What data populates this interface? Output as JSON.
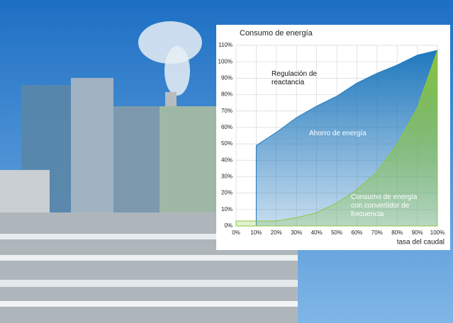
{
  "chart_data": {
    "type": "area",
    "title": "Consumo de energía",
    "x_label": "tasa del caudal",
    "annotations": [
      "Regulación de reactancia",
      "Ahorro de energía",
      "Consumo de energía con convertidor de frecuencia"
    ],
    "x": [
      0,
      10,
      20,
      30,
      40,
      50,
      60,
      70,
      80,
      90,
      100
    ],
    "series": [
      {
        "name": "Regulación de reactancia",
        "color": "#1f78bd",
        "values": [
          null,
          49,
          57,
          66,
          73,
          79,
          87,
          93,
          98,
          104,
          107
        ]
      },
      {
        "name": "Consumo de energía con convertidor de frecuencia",
        "color": "#8cc63f",
        "values": [
          3,
          3,
          3,
          5,
          8,
          14,
          22,
          33,
          50,
          72,
          107
        ]
      }
    ],
    "xlim": [
      0,
      100
    ],
    "xticks": [
      {
        "value": 0,
        "label": "0%"
      },
      {
        "value": 10,
        "label": "10%"
      },
      {
        "value": 20,
        "label": "20%"
      },
      {
        "value": 30,
        "label": "30%"
      },
      {
        "value": 40,
        "label": "40%"
      },
      {
        "value": 50,
        "label": "50%"
      },
      {
        "value": 60,
        "label": "60%"
      },
      {
        "value": 70,
        "label": "70%"
      },
      {
        "value": 80,
        "label": "80%"
      },
      {
        "value": 90,
        "label": "90%"
      },
      {
        "value": 100,
        "label": "100%"
      }
    ],
    "ylim": [
      0,
      110
    ],
    "yticks": [
      {
        "value": 0,
        "label": "0%"
      },
      {
        "value": 10,
        "label": "10%"
      },
      {
        "value": 20,
        "label": "20%"
      },
      {
        "value": 30,
        "label": "30%"
      },
      {
        "value": 40,
        "label": "40%"
      },
      {
        "value": 50,
        "label": "50%"
      },
      {
        "value": 60,
        "label": "60%"
      },
      {
        "value": 70,
        "label": "70%"
      },
      {
        "value": 80,
        "label": "80%"
      },
      {
        "value": 90,
        "label": "90%"
      },
      {
        "value": 100,
        "label": "100%"
      },
      {
        "value": 110,
        "label": "110%"
      }
    ],
    "grid": true
  }
}
